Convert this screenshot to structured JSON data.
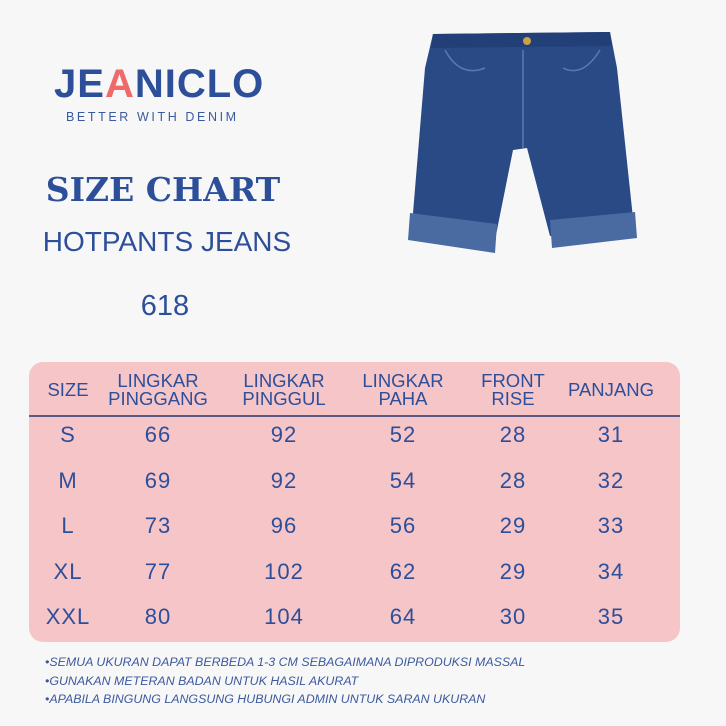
{
  "brand": {
    "name_part1": "JE",
    "name_a": "A",
    "name_part2": "NICLO",
    "tagline": "BETTER WITH DENIM"
  },
  "title": {
    "line1": "SIZE CHART",
    "line2": "HOTPANTS JEANS",
    "line3": "618"
  },
  "product_image": {
    "icon": "denim-hotpants-image",
    "color": "#2a4a86"
  },
  "colors": {
    "text": "#2d4f9a",
    "table_bg": "#f5c5c7",
    "accent": "#f06a6a"
  },
  "table": {
    "headers": [
      "SIZE",
      "LINGKAR\nPINGGANG",
      "LINGKAR\nPINGGUL",
      "LINGKAR\nPAHA",
      "FRONT\nRISE",
      "PANJANG"
    ],
    "rows": [
      [
        "S",
        "66",
        "92",
        "52",
        "28",
        "31"
      ],
      [
        "M",
        "69",
        "92",
        "54",
        "28",
        "32"
      ],
      [
        "L",
        "73",
        "96",
        "56",
        "29",
        "33"
      ],
      [
        "XL",
        "77",
        "102",
        "62",
        "29",
        "34"
      ],
      [
        "XXL",
        "80",
        "104",
        "64",
        "30",
        "35"
      ]
    ]
  },
  "notes": [
    "•SEMUA UKURAN DAPAT BERBEDA 1-3 CM SEBAGAIMANA DIPRODUKSI MASSAL",
    "•GUNAKAN METERAN BADAN UNTUK HASIL AKURAT",
    "•APABILA BINGUNG LANGSUNG HUBUNGI ADMIN UNTUK SARAN UKURAN"
  ]
}
